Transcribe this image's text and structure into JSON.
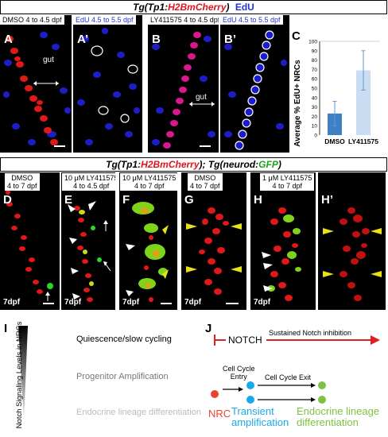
{
  "top_header": {
    "prefix": "Tg(Tp1:",
    "marker": "H2BmCherry",
    "suffix": ") ",
    "edu": "EdU"
  },
  "panel_A": {
    "letter": "A",
    "label_left": "DMSO 4 to 4.5 dpf",
    "gut": "gut"
  },
  "panel_A2": {
    "letter": "A’",
    "label": "EdU 4.5 to 5.5 dpf"
  },
  "panel_B": {
    "letter": "B",
    "label_left": "LY411575 4 to 4.5 dpf",
    "gut": "gut"
  },
  "panel_B2": {
    "letter": "B’",
    "label": "EdU 4.5 to 5.5 dpf"
  },
  "panel_C": {
    "letter": "C",
    "chart_data": {
      "type": "bar",
      "ylabel": "Average % EdU+ NRCs",
      "categories": [
        "DMSO",
        "LY411575"
      ],
      "values": [
        23,
        69
      ],
      "errors": [
        13,
        21
      ],
      "ylim": [
        0,
        100
      ],
      "yticks": [
        "0",
        "10",
        "20",
        "30",
        "40",
        "50",
        "60",
        "70",
        "80",
        "90",
        "100"
      ],
      "colors": [
        "#3f7fc4",
        "#c9dcf1"
      ]
    }
  },
  "mid_header": {
    "prefix": "Tg(Tp1:",
    "marker1": "H2BmCherry",
    "mid": "); Tg(neurod:",
    "marker2": "GFP",
    "suffix": ")"
  },
  "panel_D": {
    "letter": "D",
    "l1": "DMSO",
    "l2": "4 to 7 dpf",
    "dpf": "7dpf"
  },
  "panel_E": {
    "letter": "E",
    "l1": "10 μM LY411575",
    "l2": "4 to 4.5 dpf",
    "dpf": "7dpf"
  },
  "panel_F": {
    "letter": "F",
    "l1": "10 μM LY411575",
    "l2": "4 to 7 dpf",
    "dpf": "7dpf"
  },
  "panel_G": {
    "letter": "G",
    "l1": "DMSO",
    "l2": "4 to 7 dpf",
    "dpf": "7dpf"
  },
  "panel_H": {
    "letter": "H",
    "l1": "1 μM LY411575",
    "l2": "4 to 7 dpf",
    "dpf": "7dpf"
  },
  "panel_H2": {
    "letter": "H’"
  },
  "panel_I": {
    "letter": "I",
    "axis": "Notch Signaling Levels in NRCs",
    "levels": [
      "Quiescence/slow cycling",
      "Progenitor Amplification",
      "Endocrine lineage differentiation"
    ]
  },
  "panel_J": {
    "letter": "J",
    "notch": "NOTCH",
    "sustained": "Sustained Notch inhibition",
    "entry1": "Cell Cycle",
    "entry2": "Entry",
    "exit": "Cell Cycle Exit",
    "nrc": "NRC",
    "transient1": "Transient",
    "transient2": "amplification",
    "endo1": "Endocrine lineage",
    "endo2": "differentiation",
    "colors": {
      "red": "#e8432e",
      "cyan": "#19a9e6",
      "green": "#7ec242"
    }
  }
}
